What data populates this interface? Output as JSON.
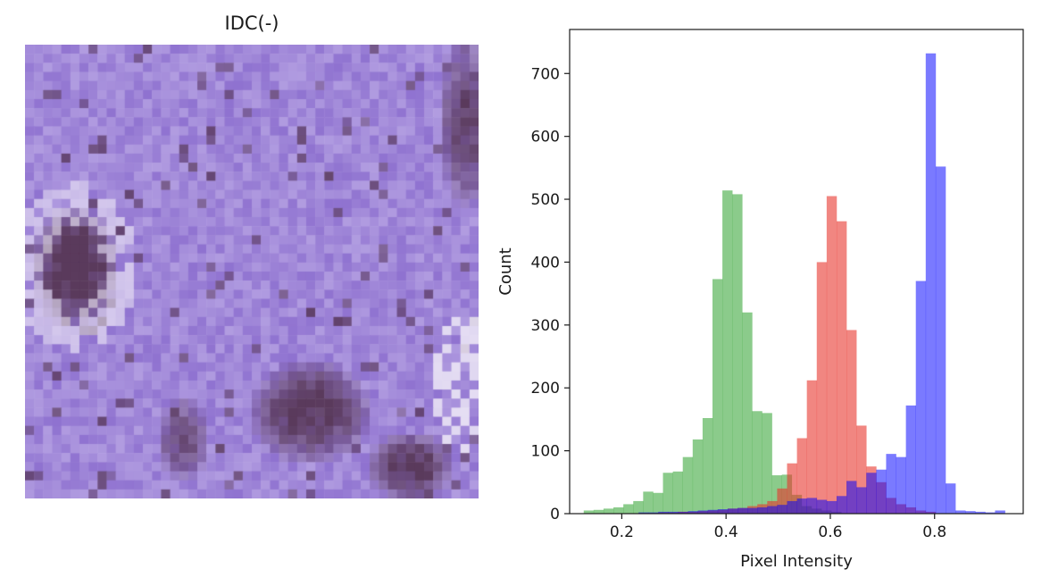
{
  "image_panel": {
    "title": "IDC(-)",
    "palette": {
      "base": "#8f72d0",
      "light": "#cdbfee",
      "dark": "#5a3a5c",
      "highlight": "#f2eef8"
    }
  },
  "chart_data": {
    "type": "bar",
    "subtype": "overlaid-histogram",
    "title": "",
    "xlabel": "Pixel Intensity",
    "ylabel": "Count",
    "xlim": [
      0.1,
      0.97
    ],
    "ylim": [
      0,
      770
    ],
    "xticks": [
      0.2,
      0.4,
      0.6,
      0.8
    ],
    "xtick_labels": [
      "0.2",
      "0.4",
      "0.6",
      "0.8"
    ],
    "yticks": [
      0,
      100,
      200,
      300,
      400,
      500,
      600,
      700
    ],
    "ytick_labels": [
      "0",
      "100",
      "200",
      "300",
      "400",
      "500",
      "600",
      "700"
    ],
    "grid": false,
    "legend": "none",
    "series": [
      {
        "color": "#2ca02c",
        "alpha": 0.55,
        "bins": [
          {
            "x0": 0.127,
            "x1": 0.146,
            "count": 5
          },
          {
            "x0": 0.146,
            "x1": 0.165,
            "count": 6
          },
          {
            "x0": 0.165,
            "x1": 0.184,
            "count": 8
          },
          {
            "x0": 0.184,
            "x1": 0.203,
            "count": 10
          },
          {
            "x0": 0.203,
            "x1": 0.222,
            "count": 15
          },
          {
            "x0": 0.222,
            "x1": 0.241,
            "count": 20
          },
          {
            "x0": 0.241,
            "x1": 0.26,
            "count": 35
          },
          {
            "x0": 0.26,
            "x1": 0.279,
            "count": 33
          },
          {
            "x0": 0.279,
            "x1": 0.298,
            "count": 65
          },
          {
            "x0": 0.298,
            "x1": 0.317,
            "count": 67
          },
          {
            "x0": 0.317,
            "x1": 0.336,
            "count": 90
          },
          {
            "x0": 0.336,
            "x1": 0.355,
            "count": 118
          },
          {
            "x0": 0.355,
            "x1": 0.374,
            "count": 152
          },
          {
            "x0": 0.374,
            "x1": 0.393,
            "count": 373
          },
          {
            "x0": 0.393,
            "x1": 0.412,
            "count": 514
          },
          {
            "x0": 0.412,
            "x1": 0.431,
            "count": 508
          },
          {
            "x0": 0.431,
            "x1": 0.45,
            "count": 320
          },
          {
            "x0": 0.45,
            "x1": 0.469,
            "count": 163
          },
          {
            "x0": 0.469,
            "x1": 0.488,
            "count": 160
          },
          {
            "x0": 0.488,
            "x1": 0.507,
            "count": 61
          },
          {
            "x0": 0.507,
            "x1": 0.526,
            "count": 62
          },
          {
            "x0": 0.526,
            "x1": 0.545,
            "count": 30
          },
          {
            "x0": 0.545,
            "x1": 0.564,
            "count": 12
          },
          {
            "x0": 0.564,
            "x1": 0.583,
            "count": 8
          },
          {
            "x0": 0.583,
            "x1": 0.602,
            "count": 5
          },
          {
            "x0": 0.602,
            "x1": 0.621,
            "count": 3
          }
        ]
      },
      {
        "color": "#e8352d",
        "alpha": 0.6,
        "bins": [
          {
            "x0": 0.232,
            "x1": 0.251,
            "count": 1
          },
          {
            "x0": 0.251,
            "x1": 0.27,
            "count": 1
          },
          {
            "x0": 0.27,
            "x1": 0.289,
            "count": 2
          },
          {
            "x0": 0.289,
            "x1": 0.308,
            "count": 2
          },
          {
            "x0": 0.308,
            "x1": 0.327,
            "count": 3
          },
          {
            "x0": 0.327,
            "x1": 0.346,
            "count": 3
          },
          {
            "x0": 0.346,
            "x1": 0.365,
            "count": 4
          },
          {
            "x0": 0.365,
            "x1": 0.384,
            "count": 5
          },
          {
            "x0": 0.384,
            "x1": 0.403,
            "count": 6
          },
          {
            "x0": 0.403,
            "x1": 0.422,
            "count": 8
          },
          {
            "x0": 0.422,
            "x1": 0.441,
            "count": 9
          },
          {
            "x0": 0.441,
            "x1": 0.46,
            "count": 12
          },
          {
            "x0": 0.46,
            "x1": 0.479,
            "count": 15
          },
          {
            "x0": 0.479,
            "x1": 0.498,
            "count": 20
          },
          {
            "x0": 0.498,
            "x1": 0.517,
            "count": 40
          },
          {
            "x0": 0.517,
            "x1": 0.536,
            "count": 80
          },
          {
            "x0": 0.536,
            "x1": 0.555,
            "count": 120
          },
          {
            "x0": 0.555,
            "x1": 0.574,
            "count": 212
          },
          {
            "x0": 0.574,
            "x1": 0.593,
            "count": 400
          },
          {
            "x0": 0.593,
            "x1": 0.612,
            "count": 505
          },
          {
            "x0": 0.612,
            "x1": 0.631,
            "count": 465
          },
          {
            "x0": 0.631,
            "x1": 0.65,
            "count": 292
          },
          {
            "x0": 0.65,
            "x1": 0.669,
            "count": 140
          },
          {
            "x0": 0.669,
            "x1": 0.688,
            "count": 75
          },
          {
            "x0": 0.688,
            "x1": 0.707,
            "count": 50
          },
          {
            "x0": 0.707,
            "x1": 0.726,
            "count": 25
          },
          {
            "x0": 0.726,
            "x1": 0.745,
            "count": 15
          },
          {
            "x0": 0.745,
            "x1": 0.764,
            "count": 10
          },
          {
            "x0": 0.764,
            "x1": 0.783,
            "count": 5
          },
          {
            "x0": 0.783,
            "x1": 0.802,
            "count": 3
          }
        ]
      },
      {
        "color": "#0000ff",
        "alpha": 0.52,
        "bins": [
          {
            "x0": 0.232,
            "x1": 0.251,
            "count": 2
          },
          {
            "x0": 0.251,
            "x1": 0.27,
            "count": 2
          },
          {
            "x0": 0.27,
            "x1": 0.289,
            "count": 3
          },
          {
            "x0": 0.289,
            "x1": 0.308,
            "count": 3
          },
          {
            "x0": 0.308,
            "x1": 0.327,
            "count": 3
          },
          {
            "x0": 0.327,
            "x1": 0.346,
            "count": 4
          },
          {
            "x0": 0.346,
            "x1": 0.365,
            "count": 5
          },
          {
            "x0": 0.365,
            "x1": 0.384,
            "count": 6
          },
          {
            "x0": 0.384,
            "x1": 0.403,
            "count": 7
          },
          {
            "x0": 0.403,
            "x1": 0.422,
            "count": 8
          },
          {
            "x0": 0.422,
            "x1": 0.441,
            "count": 9
          },
          {
            "x0": 0.441,
            "x1": 0.46,
            "count": 9
          },
          {
            "x0": 0.46,
            "x1": 0.479,
            "count": 10
          },
          {
            "x0": 0.479,
            "x1": 0.498,
            "count": 12
          },
          {
            "x0": 0.498,
            "x1": 0.517,
            "count": 14
          },
          {
            "x0": 0.517,
            "x1": 0.536,
            "count": 20
          },
          {
            "x0": 0.536,
            "x1": 0.555,
            "count": 24
          },
          {
            "x0": 0.555,
            "x1": 0.574,
            "count": 25
          },
          {
            "x0": 0.574,
            "x1": 0.593,
            "count": 22
          },
          {
            "x0": 0.593,
            "x1": 0.612,
            "count": 20
          },
          {
            "x0": 0.612,
            "x1": 0.631,
            "count": 28
          },
          {
            "x0": 0.631,
            "x1": 0.65,
            "count": 52
          },
          {
            "x0": 0.65,
            "x1": 0.669,
            "count": 42
          },
          {
            "x0": 0.669,
            "x1": 0.688,
            "count": 65
          },
          {
            "x0": 0.688,
            "x1": 0.707,
            "count": 70
          },
          {
            "x0": 0.707,
            "x1": 0.726,
            "count": 95
          },
          {
            "x0": 0.726,
            "x1": 0.745,
            "count": 90
          },
          {
            "x0": 0.745,
            "x1": 0.764,
            "count": 172
          },
          {
            "x0": 0.764,
            "x1": 0.783,
            "count": 370
          },
          {
            "x0": 0.783,
            "x1": 0.802,
            "count": 732
          },
          {
            "x0": 0.802,
            "x1": 0.821,
            "count": 552
          },
          {
            "x0": 0.821,
            "x1": 0.84,
            "count": 48
          },
          {
            "x0": 0.84,
            "x1": 0.859,
            "count": 5
          },
          {
            "x0": 0.859,
            "x1": 0.878,
            "count": 4
          },
          {
            "x0": 0.878,
            "x1": 0.897,
            "count": 3
          },
          {
            "x0": 0.897,
            "x1": 0.916,
            "count": 2
          },
          {
            "x0": 0.916,
            "x1": 0.935,
            "count": 5
          }
        ]
      }
    ]
  }
}
